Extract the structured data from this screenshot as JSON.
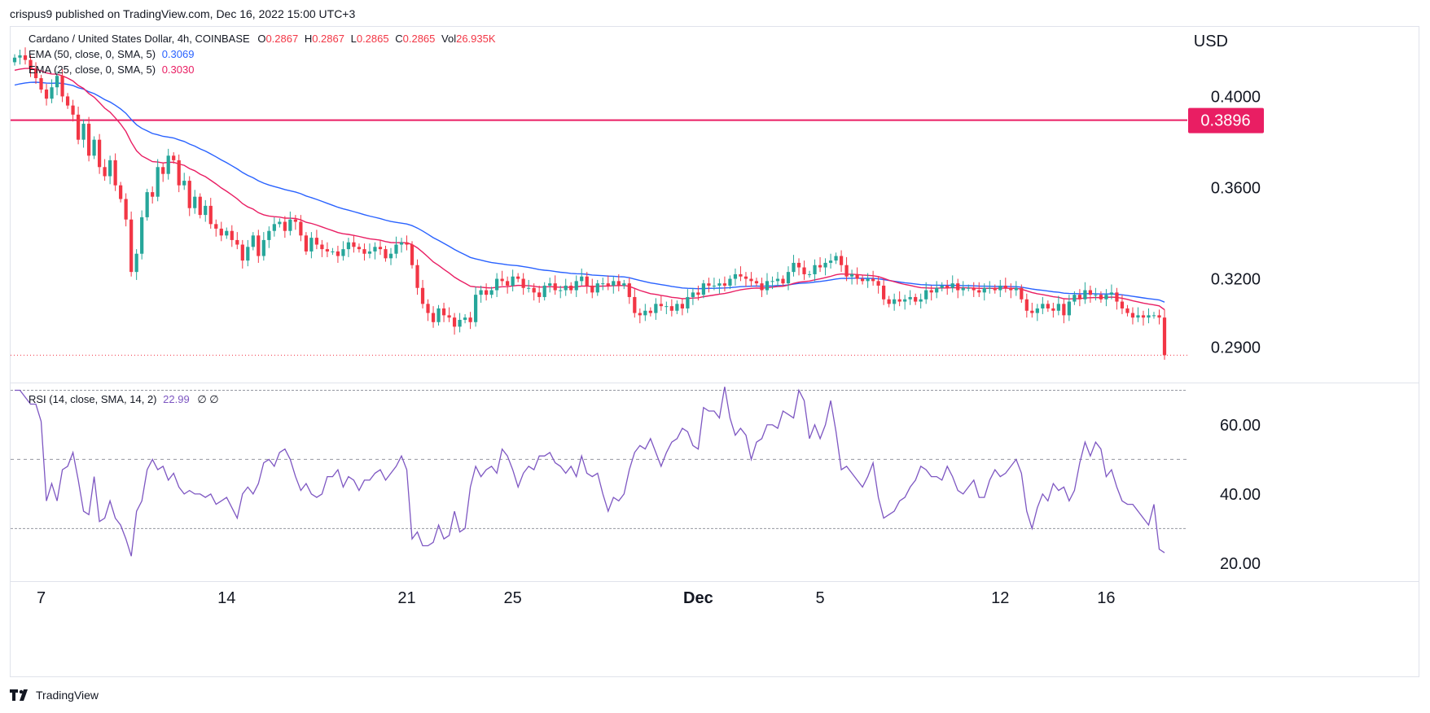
{
  "caption": "crispus9 published on TradingView.com, Dec 16, 2022 15:00 UTC+3",
  "legend": {
    "symbol": "Cardano / United States Dollar, 4h, COINBASE",
    "o_label": "O",
    "o_value": "0.2867",
    "h_label": "H",
    "h_value": "0.2867",
    "l_label": "L",
    "l_value": "0.2865",
    "c_label": "C",
    "c_value": "0.2865",
    "vol_label": "Vol",
    "vol_value": "26.935K",
    "ema50_label": "EMA (50, close, 0, SMA, 5)",
    "ema50_value": "0.3069",
    "ema25_label": "EMA (25, close, 0, SMA, 5)",
    "ema25_value": "0.3030",
    "rsi_label": "RSI (14, close, SMA, 14, 2)",
    "rsi_value": "22.99",
    "rsi_extra": "∅ ∅"
  },
  "logo_text": "TradingView",
  "colors": {
    "up": "#26a69a",
    "down": "#f23645",
    "ema50": "#2962ff",
    "ema25": "#e91e63",
    "level": "#e91e63",
    "rsi": "#7e57c2",
    "axis_text": "#131722"
  },
  "chart_data": [
    {
      "type": "candlestick",
      "title": "Cardano / United States Dollar, 4h, COINBASE",
      "ylabel": "USD",
      "ylim": [
        0.2745,
        0.4305
      ],
      "y_ticks": [
        "0.4000",
        "0.3600",
        "0.3200",
        "0.2900"
      ],
      "x_ticks": [
        "7",
        "14",
        "21",
        "25",
        "Dec",
        "5",
        "12",
        "16"
      ],
      "x_tick_index": [
        5,
        40,
        74,
        94,
        129,
        152,
        186,
        206
      ],
      "horizontal_level": {
        "value": 0.3896,
        "label": "0.3896"
      },
      "last_price": 0.2865,
      "close_series": [
        0.417,
        0.418,
        0.416,
        0.412,
        0.408,
        0.403,
        0.399,
        0.404,
        0.409,
        0.4,
        0.396,
        0.392,
        0.381,
        0.388,
        0.374,
        0.381,
        0.369,
        0.365,
        0.372,
        0.361,
        0.355,
        0.346,
        0.323,
        0.331,
        0.347,
        0.358,
        0.356,
        0.369,
        0.366,
        0.374,
        0.372,
        0.361,
        0.363,
        0.351,
        0.356,
        0.348,
        0.352,
        0.344,
        0.342,
        0.339,
        0.341,
        0.337,
        0.335,
        0.328,
        0.334,
        0.339,
        0.33,
        0.337,
        0.341,
        0.344,
        0.345,
        0.341,
        0.346,
        0.345,
        0.339,
        0.332,
        0.338,
        0.335,
        0.333,
        0.332,
        0.332,
        0.33,
        0.333,
        0.336,
        0.334,
        0.333,
        0.331,
        0.332,
        0.334,
        0.333,
        0.329,
        0.331,
        0.335,
        0.336,
        0.335,
        0.326,
        0.316,
        0.309,
        0.305,
        0.301,
        0.307,
        0.304,
        0.303,
        0.299,
        0.302,
        0.303,
        0.301,
        0.313,
        0.315,
        0.313,
        0.315,
        0.32,
        0.319,
        0.317,
        0.321,
        0.32,
        0.316,
        0.316,
        0.314,
        0.312,
        0.317,
        0.318,
        0.315,
        0.315,
        0.317,
        0.315,
        0.319,
        0.321,
        0.317,
        0.314,
        0.318,
        0.318,
        0.317,
        0.319,
        0.317,
        0.318,
        0.312,
        0.305,
        0.304,
        0.306,
        0.305,
        0.309,
        0.308,
        0.308,
        0.306,
        0.309,
        0.307,
        0.312,
        0.314,
        0.313,
        0.318,
        0.317,
        0.317,
        0.318,
        0.317,
        0.32,
        0.322,
        0.321,
        0.32,
        0.319,
        0.318,
        0.315,
        0.319,
        0.319,
        0.32,
        0.318,
        0.323,
        0.327,
        0.325,
        0.322,
        0.322,
        0.326,
        0.325,
        0.327,
        0.328,
        0.33,
        0.326,
        0.321,
        0.322,
        0.32,
        0.319,
        0.32,
        0.319,
        0.317,
        0.311,
        0.309,
        0.311,
        0.31,
        0.311,
        0.312,
        0.31,
        0.311,
        0.315,
        0.314,
        0.316,
        0.317,
        0.316,
        0.318,
        0.315,
        0.316,
        0.316,
        0.315,
        0.314,
        0.316,
        0.316,
        0.315,
        0.317,
        0.316,
        0.315,
        0.316,
        0.311,
        0.306,
        0.305,
        0.307,
        0.309,
        0.307,
        0.306,
        0.309,
        0.304,
        0.31,
        0.313,
        0.311,
        0.315,
        0.313,
        0.313,
        0.311,
        0.313,
        0.314,
        0.31,
        0.307,
        0.305,
        0.303,
        0.304,
        0.303,
        0.304,
        0.304,
        0.303,
        0.2865
      ],
      "ema50_start": 0.4045,
      "ema25_start": 0.411
    },
    {
      "type": "line",
      "title": "RSI (14, close, SMA, 14, 2)",
      "ylim": [
        15,
        72
      ],
      "y_ticks": [
        60,
        40,
        20
      ],
      "y_tick_labels": [
        "60.00",
        "40.00",
        "20.00"
      ],
      "bands": [
        70,
        50,
        30
      ],
      "values": [
        70,
        70,
        68,
        66,
        66,
        61,
        38,
        43,
        38,
        47,
        48,
        52,
        44,
        35,
        34,
        45,
        32,
        33,
        38,
        33,
        31,
        27,
        22,
        35,
        38,
        47,
        50,
        47,
        48,
        44,
        46,
        42,
        40,
        41,
        40,
        40,
        39,
        40,
        37,
        38,
        39,
        36,
        33,
        40,
        42,
        40,
        43,
        49,
        50,
        48,
        52,
        53,
        50,
        45,
        41,
        43,
        40,
        39,
        40,
        45,
        45,
        47,
        42,
        45,
        44,
        41,
        44,
        44,
        46,
        47,
        44,
        46,
        48,
        51,
        47,
        27,
        29,
        25,
        25,
        26,
        31,
        27,
        28,
        35,
        29,
        30,
        42,
        48,
        45,
        47,
        48,
        46,
        53,
        51,
        47,
        42,
        46,
        48,
        47,
        51,
        51,
        52,
        49,
        48,
        46,
        48,
        45,
        51,
        46,
        45,
        46,
        40,
        35,
        39,
        38,
        40,
        47,
        52,
        54,
        53,
        56,
        52,
        48,
        52,
        55,
        56,
        59,
        58,
        54,
        53,
        65,
        64,
        64,
        62,
        71,
        62,
        57,
        59,
        57,
        50,
        55,
        56,
        60,
        60,
        59,
        64,
        63,
        62,
        70,
        67,
        56,
        60,
        56,
        60,
        67,
        58,
        47,
        48,
        46,
        44,
        42,
        45,
        49,
        39,
        33,
        34,
        35,
        38,
        39,
        42,
        44,
        48,
        47,
        45,
        45,
        44,
        48,
        45,
        41,
        40,
        42,
        44,
        39,
        39,
        44,
        47,
        45,
        46,
        48,
        50,
        46,
        35,
        30,
        36,
        40,
        38,
        43,
        41,
        42,
        38,
        41,
        49,
        55,
        51,
        55,
        53,
        45,
        47,
        42,
        38,
        37,
        37,
        35,
        33,
        31,
        37,
        24,
        22.99
      ]
    }
  ],
  "last_close_label": "0.2865"
}
